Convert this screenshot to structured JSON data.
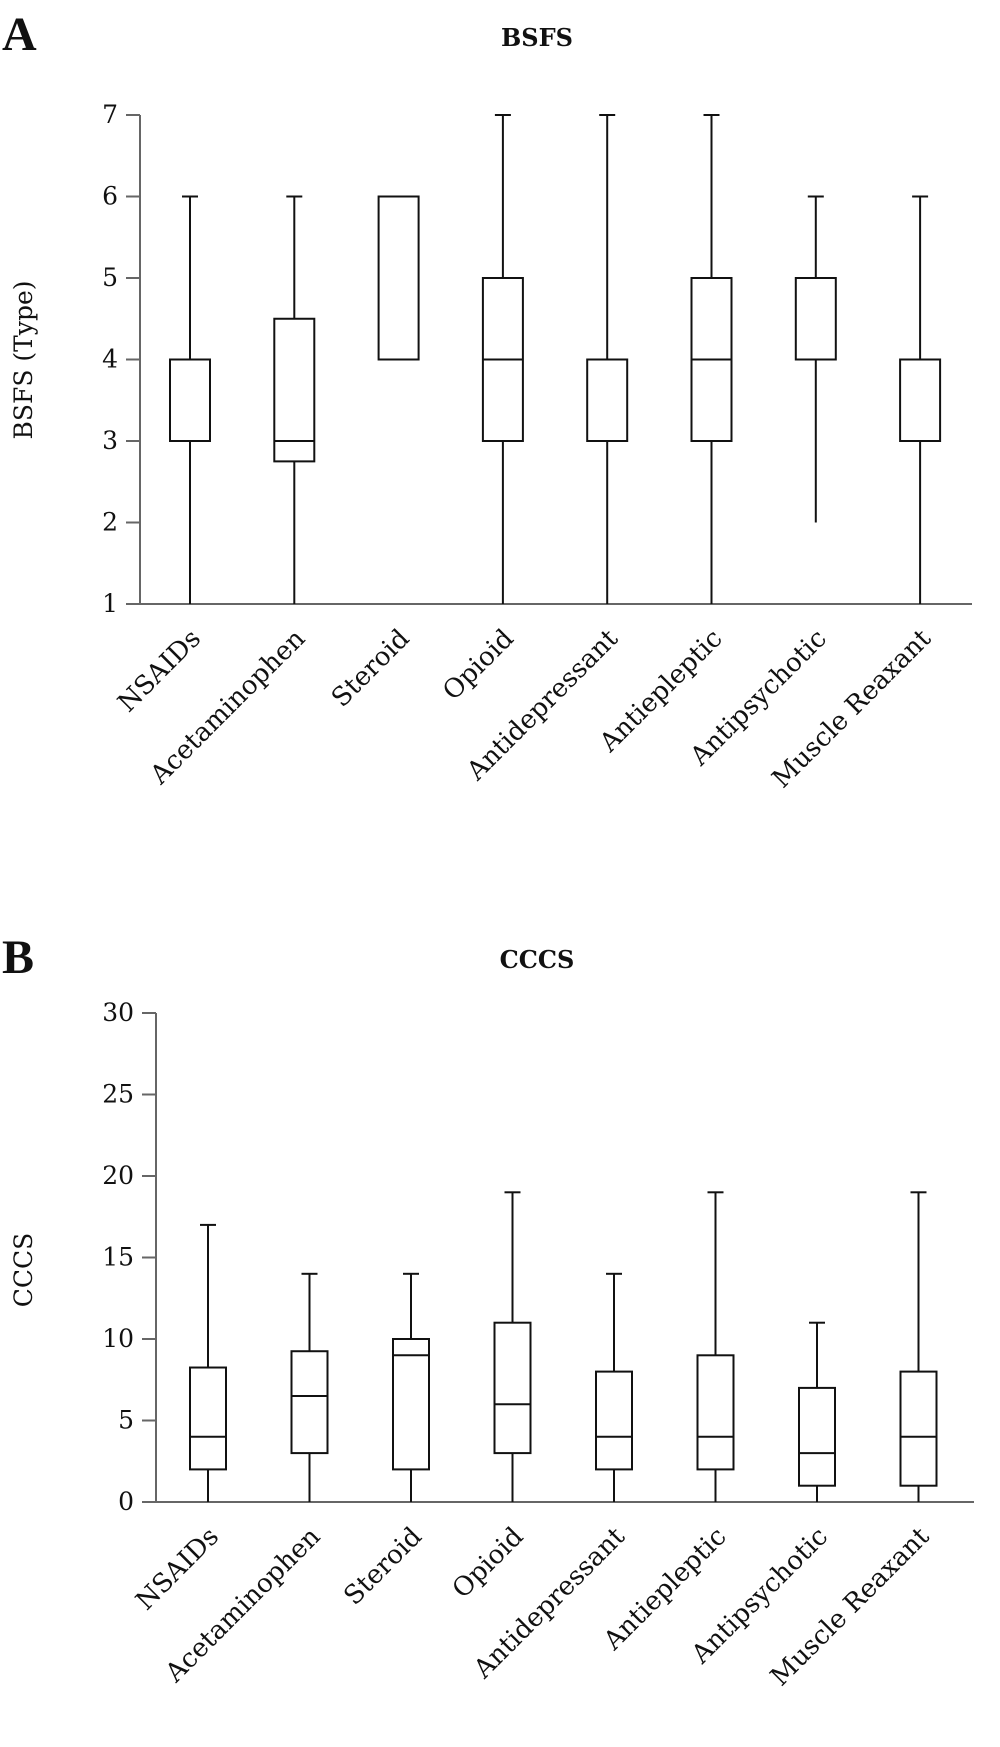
{
  "chart_data": [
    {
      "type": "boxplot",
      "panel": "A",
      "title": "BSFS",
      "ylabel": "BSFS (Type)",
      "ylim": [
        1,
        7
      ],
      "yticks": [
        1,
        2,
        3,
        4,
        5,
        6,
        7
      ],
      "grid": false,
      "categories": [
        "NSAIDs",
        "Acetaminophen",
        "Steroid",
        "Opioid",
        "Antidepressant",
        "Antiepleptic",
        "Antipsychotic",
        "Muscle Reaxant"
      ],
      "boxes": [
        {
          "min": 1,
          "q1": 3,
          "median": 3,
          "q3": 4,
          "max": 6
        },
        {
          "min": 1,
          "q1": 2.75,
          "median": 3,
          "q3": 4.5,
          "max": 6
        },
        {
          "min": 4,
          "q1": 4,
          "median": 6,
          "q3": 6,
          "max": 6
        },
        {
          "min": 1,
          "q1": 3,
          "median": 4,
          "q3": 5,
          "max": 7
        },
        {
          "min": 1,
          "q1": 3,
          "median": 3,
          "q3": 4,
          "max": 7
        },
        {
          "min": 1,
          "q1": 3,
          "median": 4,
          "q3": 5,
          "max": 7
        },
        {
          "min": 2,
          "q1": 4,
          "median": 5,
          "q3": 5,
          "max": 6
        },
        {
          "min": 1,
          "q1": 3,
          "median": 3,
          "q3": 4,
          "max": 6
        }
      ]
    },
    {
      "type": "boxplot",
      "panel": "B",
      "title": "CCCS",
      "ylabel": "CCCS",
      "ylim": [
        0,
        30
      ],
      "yticks": [
        0,
        5,
        10,
        15,
        20,
        25,
        30
      ],
      "grid": false,
      "categories": [
        "NSAIDs",
        "Acetaminophen",
        "Steroid",
        "Opioid",
        "Antidepressant",
        "Antiepleptic",
        "Antipsychotic",
        "Muscle Reaxant"
      ],
      "boxes": [
        {
          "min": 0,
          "q1": 2,
          "median": 4,
          "q3": 8.25,
          "max": 17
        },
        {
          "min": 0,
          "q1": 3,
          "median": 6.5,
          "q3": 9.25,
          "max": 14
        },
        {
          "min": 0,
          "q1": 2,
          "median": 9,
          "q3": 10,
          "max": 14
        },
        {
          "min": 0,
          "q1": 3,
          "median": 6,
          "q3": 11,
          "max": 19
        },
        {
          "min": 0,
          "q1": 2,
          "median": 4,
          "q3": 8,
          "max": 14
        },
        {
          "min": 0,
          "q1": 2,
          "median": 4,
          "q3": 9,
          "max": 19
        },
        {
          "min": 0,
          "q1": 1,
          "median": 3,
          "q3": 7,
          "max": 11
        },
        {
          "min": 0,
          "q1": 1,
          "median": 4,
          "q3": 8,
          "max": 19
        }
      ]
    }
  ]
}
